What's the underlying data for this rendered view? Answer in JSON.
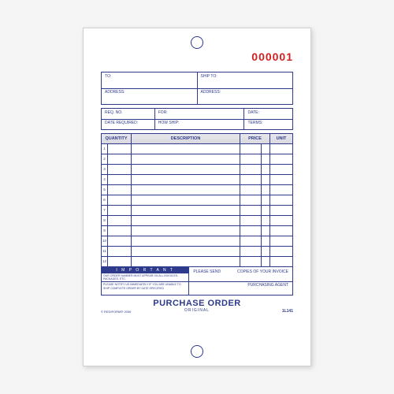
{
  "form_number": "000001",
  "addresses": {
    "to_label": "TO:",
    "ship_to_label": "SHIP TO:",
    "address_label": "ADDRESS:"
  },
  "meta": {
    "req_no": "REQ. NO.",
    "for": "FOR:",
    "date": "DATE:",
    "date_required": "DATE REQUIRED:",
    "how_ship": "HOW SHIP:",
    "terms": "TERMS:"
  },
  "columns": {
    "quantity": "Quantity",
    "description": "Description",
    "price": "Price",
    "unit": "Unit"
  },
  "row_count": 12,
  "footer": {
    "important": "I M P O R T A N T",
    "line1": "OUR ORDER NUMBER MUST APPEAR ON ALL INVOICES-PACKAGES, ETC.",
    "line2": "PLEASE NOTIFY US IMMEDIATELY IF YOU ARE UNABLE TO SHIP COMPLETE ORDER BY DATE SPECIFIED",
    "please_send": "PLEASE SEND",
    "copies": "COPIES OF YOUR INVOICE",
    "purchasing_agent": "PURCHASING AGENT"
  },
  "title": "PURCHASE ORDER",
  "subtitle": "ORIGINAL",
  "copyright": "© REDIFORM® 2006",
  "form_code": "1L141",
  "colors": {
    "ink": "#2e3a8c",
    "number": "#d41f1f",
    "page": "#ffffff"
  }
}
